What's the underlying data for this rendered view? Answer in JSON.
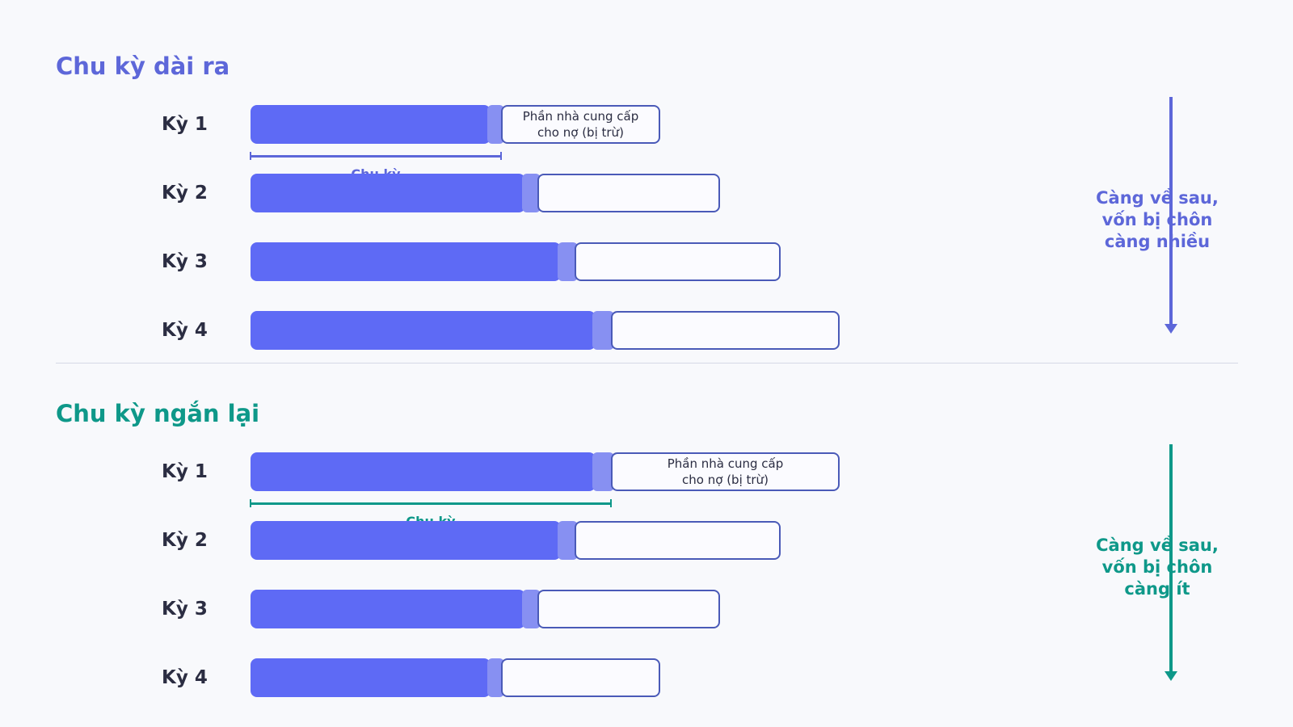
{
  "colors": {
    "background": "#f8f9fc",
    "bar": "#5e6af5",
    "gap": "#8790f2",
    "supplier_border": "#4a5ab8",
    "top_accent": "#5d67d9",
    "bottom_accent": "#0e9889",
    "label": "#2b2d42"
  },
  "sections": [
    {
      "title": "Chu kỳ dài ra",
      "accent": "#5d67d9",
      "cycle_label": "Chu kỳ",
      "trend_note": "Càng về sau,\nvốn bị chôn\ncàng nhiều",
      "rows": [
        {
          "label": "Kỳ 1",
          "main": 297,
          "gap": 13,
          "supplier": 197,
          "supplier_text": "Phần nhà cung cấp\ncho nợ (bị trừ)"
        },
        {
          "label": "Kỳ 2",
          "main": 340,
          "gap": 15,
          "supplier": 226,
          "supplier_text": ""
        },
        {
          "label": "Kỳ 3",
          "main": 384,
          "gap": 17,
          "supplier": 255,
          "supplier_text": ""
        },
        {
          "label": "Kỳ 4",
          "main": 427,
          "gap": 19,
          "supplier": 283,
          "supplier_text": ""
        }
      ]
    },
    {
      "title": "Chu kỳ ngắn lại",
      "accent": "#0e9889",
      "cycle_label": "Chu kỳ",
      "trend_note": "Càng về sau,\nvốn bị chôn\ncàng ít",
      "rows": [
        {
          "label": "Kỳ 1",
          "main": 427,
          "gap": 19,
          "supplier": 283,
          "supplier_text": "Phần nhà cung cấp\ncho nợ (bị trừ)"
        },
        {
          "label": "Kỳ 2",
          "main": 384,
          "gap": 17,
          "supplier": 255,
          "supplier_text": ""
        },
        {
          "label": "Kỳ 3",
          "main": 340,
          "gap": 15,
          "supplier": 226,
          "supplier_text": ""
        },
        {
          "label": "Kỳ 4",
          "main": 297,
          "gap": 13,
          "supplier": 197,
          "supplier_text": ""
        }
      ]
    }
  ]
}
